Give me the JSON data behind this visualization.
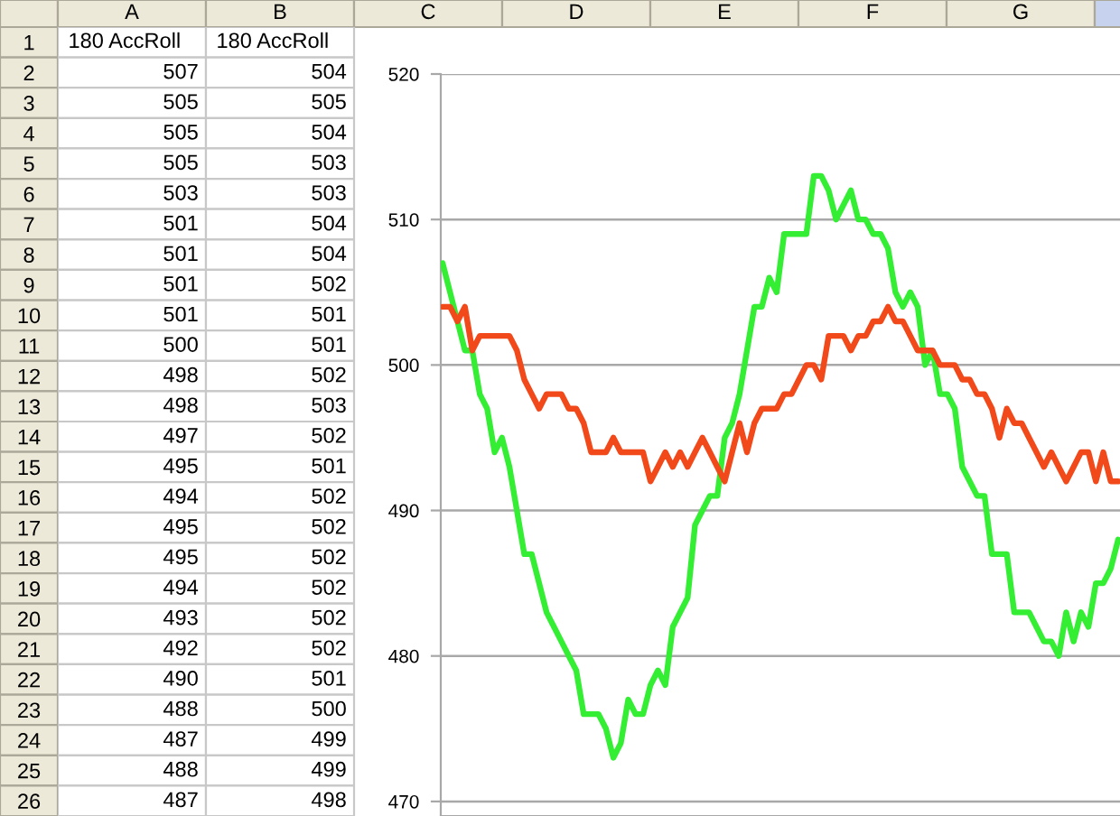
{
  "chart_data": [
    {
      "type": "heatmap",
      "categories": [
        "A",
        "B",
        "C",
        "D",
        "E",
        "F",
        "G"
      ],
      "y_categories": [
        "1",
        "2",
        "3",
        "4",
        "5",
        "6",
        "7",
        "8",
        "9",
        "10",
        "11",
        "12",
        "13",
        "14",
        "15",
        "16",
        "17",
        "18",
        "19",
        "20",
        "21",
        "22",
        "23",
        "24",
        "25",
        "26"
      ],
      "cells": [
        [
          null,
          null,
          null,
          null,
          null,
          null,
          null
        ],
        [
          null,
          null,
          null,
          null,
          null,
          null,
          null
        ],
        [
          null,
          null,
          null,
          null,
          null,
          null,
          null
        ],
        [
          null,
          null,
          null,
          null,
          null,
          null,
          null
        ],
        [
          null,
          null,
          null,
          null,
          null,
          null,
          null
        ],
        [
          null,
          null,
          null,
          null,
          null,
          null,
          null
        ],
        [
          null,
          null,
          null,
          null,
          null,
          null,
          null
        ],
        [
          null,
          null,
          null,
          null,
          null,
          null,
          null
        ],
        [
          null,
          null,
          null,
          null,
          null,
          null,
          null
        ],
        [
          null,
          null,
          null,
          null,
          null,
          null,
          null
        ],
        [
          null,
          null,
          null,
          null,
          null,
          null,
          null
        ],
        [
          null,
          null,
          null,
          null,
          null,
          null,
          null
        ],
        [
          null,
          null,
          null,
          null,
          null,
          null,
          null
        ],
        [
          null,
          null,
          null,
          null,
          null,
          null,
          null
        ],
        [
          null,
          null,
          null,
          null,
          null,
          null,
          null
        ],
        [
          null,
          null,
          null,
          null,
          null,
          null,
          null
        ],
        [
          null,
          null,
          null,
          null,
          null,
          null,
          null
        ],
        [
          null,
          null,
          null,
          null,
          null,
          null,
          null
        ],
        [
          null,
          null,
          null,
          null,
          null,
          null,
          null
        ],
        [
          null,
          null,
          null,
          null,
          null,
          null,
          null
        ],
        [
          null,
          null,
          null,
          null,
          null,
          null,
          null
        ],
        [
          null,
          null,
          null,
          null,
          null,
          null,
          null
        ],
        [
          null,
          null,
          null,
          null,
          null,
          null,
          null
        ],
        [
          null,
          null,
          null,
          null,
          null,
          null,
          null
        ],
        [
          null,
          null,
          null,
          null,
          null,
          null,
          null
        ],
        [
          null,
          null,
          null,
          null,
          null,
          null,
          null
        ]
      ],
      "cell_labels": [
        [
          "180 AccRoll",
          "180 AccRoll",
          null,
          null,
          null,
          null,
          null
        ],
        [
          "507",
          "504",
          null,
          null,
          null,
          null,
          null
        ],
        [
          "505",
          "505",
          null,
          null,
          null,
          null,
          null
        ],
        [
          "505",
          "504",
          null,
          null,
          null,
          null,
          null
        ],
        [
          "505",
          "503",
          null,
          null,
          null,
          null,
          null
        ],
        [
          "503",
          "503",
          null,
          null,
          null,
          null,
          null
        ],
        [
          "501",
          "504",
          null,
          null,
          null,
          null,
          null
        ],
        [
          "501",
          "504",
          null,
          null,
          null,
          null,
          null
        ],
        [
          "501",
          "502",
          null,
          null,
          null,
          null,
          null
        ],
        [
          "501",
          "501",
          null,
          null,
          null,
          null,
          null
        ],
        [
          "500",
          "501",
          null,
          null,
          null,
          null,
          null
        ],
        [
          "498",
          "502",
          null,
          null,
          null,
          null,
          null
        ],
        [
          "498",
          "503",
          null,
          null,
          null,
          null,
          null
        ],
        [
          "497",
          "502",
          null,
          null,
          null,
          null,
          null
        ],
        [
          "495",
          "501",
          null,
          null,
          null,
          null,
          null
        ],
        [
          "494",
          "502",
          null,
          null,
          null,
          null,
          null
        ],
        [
          "495",
          "502",
          null,
          null,
          null,
          null,
          null
        ],
        [
          "495",
          "502",
          null,
          null,
          null,
          null,
          null
        ],
        [
          "494",
          "502",
          null,
          null,
          null,
          null,
          null
        ],
        [
          "493",
          "502",
          null,
          null,
          null,
          null,
          null
        ],
        [
          "492",
          "502",
          null,
          null,
          null,
          null,
          null
        ],
        [
          "490",
          "501",
          null,
          null,
          null,
          null,
          null
        ],
        [
          "488",
          "500",
          null,
          null,
          null,
          null,
          null
        ],
        [
          "487",
          "499",
          null,
          null,
          null,
          null,
          null
        ],
        [
          "488",
          "499",
          null,
          null,
          null,
          null,
          null
        ],
        [
          "487",
          "498",
          null,
          null,
          null,
          null,
          null
        ]
      ]
    },
    {
      "type": "line",
      "categories": [
        null,
        null,
        null,
        null,
        null,
        null,
        null,
        null,
        null,
        null,
        null,
        null,
        null,
        null,
        null,
        null,
        null,
        null,
        null,
        null,
        null,
        null,
        null,
        null,
        null,
        null,
        null,
        null,
        null,
        null,
        null,
        null,
        null,
        null,
        null,
        null,
        null,
        null,
        null,
        null,
        null,
        null,
        null,
        null,
        null,
        null,
        null,
        null,
        null,
        null,
        null,
        null,
        null,
        null,
        null,
        null,
        null,
        null,
        null,
        null,
        null,
        null,
        null,
        null,
        null,
        null,
        null,
        null,
        null,
        null,
        null,
        null,
        null,
        null,
        null,
        null,
        null,
        null,
        null,
        null,
        null,
        null,
        null,
        null,
        null,
        null,
        null,
        null,
        null,
        null,
        null,
        null
      ],
      "ylim": [
        469,
        520
      ],
      "yticks": [
        470,
        480,
        490,
        500,
        510,
        520
      ],
      "grid": "y",
      "tick_labels": "y",
      "series": [
        {
          "color": "#33ee33",
          "values": [
            507,
            505,
            503,
            501,
            501,
            498,
            497,
            494,
            495,
            493,
            490,
            487,
            487,
            485,
            483,
            482,
            481,
            480,
            479,
            476,
            476,
            476,
            475,
            473,
            474,
            477,
            476,
            476,
            478,
            479,
            478,
            482,
            483,
            484,
            489,
            490,
            491,
            491,
            495,
            496,
            498,
            501,
            504,
            504,
            506,
            505,
            509,
            509,
            509,
            509,
            513,
            513,
            512,
            510,
            511,
            512,
            510,
            510,
            509,
            509,
            508,
            505,
            504,
            505,
            504,
            500,
            501,
            498,
            498,
            497,
            493,
            492,
            491,
            491,
            487,
            487,
            487,
            483,
            483,
            483,
            482,
            481,
            481,
            480,
            483,
            481,
            483,
            482,
            485,
            485,
            486,
            488
          ]
        },
        {
          "color": "#f2491b",
          "values": [
            504,
            504,
            503,
            504,
            501,
            502,
            502,
            502,
            502,
            502,
            501,
            499,
            498,
            497,
            498,
            498,
            498,
            497,
            497,
            496,
            494,
            494,
            494,
            495,
            494,
            494,
            494,
            494,
            492,
            493,
            494,
            493,
            494,
            493,
            494,
            495,
            494,
            493,
            492,
            494,
            496,
            494,
            496,
            497,
            497,
            497,
            498,
            498,
            499,
            500,
            500,
            499,
            502,
            502,
            502,
            501,
            502,
            502,
            503,
            503,
            504,
            503,
            503,
            502,
            501,
            501,
            501,
            500,
            500,
            500,
            499,
            499,
            498,
            498,
            497,
            495,
            497,
            496,
            496,
            495,
            494,
            493,
            494,
            493,
            492,
            493,
            494,
            494,
            492,
            494,
            492,
            492
          ]
        }
      ]
    }
  ]
}
